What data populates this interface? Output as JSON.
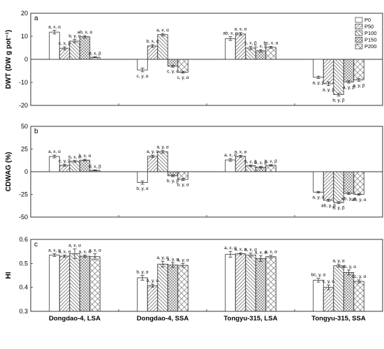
{
  "figure": {
    "categories": [
      "Dongdao-4, LSA",
      "Dongdao-4, SSA",
      "Tongyu-315, LSA",
      "Tongyu-315, SSA"
    ],
    "legend": [
      {
        "name": "P0",
        "pattern": "none"
      },
      {
        "name": "P50",
        "pattern": "diag-right"
      },
      {
        "name": "P100",
        "pattern": "diag-left"
      },
      {
        "name": "P150",
        "pattern": "cross"
      },
      {
        "name": "P200",
        "pattern": "cross-wide"
      }
    ],
    "colors": {
      "bar_fill": "#ffffff",
      "stroke": "#333333",
      "hatch": "#777777"
    }
  },
  "chart_data": [
    {
      "type": "bar",
      "panel_label": "a",
      "ylabel": "DWT (DW g pot⁻¹)",
      "ylim": [
        -20,
        20
      ],
      "yticks": [
        -20,
        -10,
        0,
        10,
        20
      ],
      "categories": [
        "Dongdao-4, LSA",
        "Dongdao-4, SSA",
        "Tongyu-315, LSA",
        "Tongyu-315, SSA"
      ],
      "legend_position": "top-right",
      "series": [
        {
          "name": "P0",
          "values": [
            11.8,
            -4.6,
            9.0,
            -7.8
          ],
          "errors": [
            0.8,
            0.8,
            0.8,
            0.5
          ],
          "labels": [
            "a, x, α",
            "c, y, α",
            "ab, x, α",
            "a, y, β"
          ]
        },
        {
          "name": "P50",
          "values": [
            4.8,
            5.8,
            11.0,
            -10.6
          ],
          "errors": [
            0.6,
            0.6,
            0.6,
            0.8
          ],
          "labels": [
            "c, x, β",
            "b, x, α",
            "a, x, α",
            "a, y, β"
          ]
        },
        {
          "name": "P100",
          "values": [
            7.9,
            10.7,
            4.9,
            -15.3
          ],
          "errors": [
            0.7,
            0.5,
            0.7,
            0.6
          ],
          "labels": [
            "b, y, α",
            "a, x, α",
            "c, x, β",
            "b, y, β"
          ]
        },
        {
          "name": "P150",
          "values": [
            9.8,
            -3.0,
            3.7,
            -9.8
          ],
          "errors": [
            0.5,
            0.4,
            0.5,
            0.5
          ],
          "labels": [
            "ab, x, α",
            "c, y, α",
            "c, x, β",
            "a, y, β"
          ]
        },
        {
          "name": "P200",
          "values": [
            0.9,
            -5.6,
            5.2,
            -8.9
          ],
          "errors": [
            0.2,
            0.4,
            0.4,
            0.6
          ],
          "labels": [
            "d, x, β",
            "c, y, α",
            "bc, x, α",
            "a, y, β"
          ]
        }
      ]
    },
    {
      "type": "bar",
      "panel_label": "b",
      "ylabel": "CDWAG (%)",
      "ylim": [
        -50,
        50
      ],
      "yticks": [
        -50,
        -25,
        0,
        25,
        50
      ],
      "categories": [
        "Dongdao-4, LSA",
        "Dongdao-4, SSA",
        "Tongyu-315, LSA",
        "Tongyu-315, SSA"
      ],
      "series": [
        {
          "name": "P0",
          "values": [
            16.8,
            -12.0,
            13.0,
            -22.5
          ],
          "errors": [
            1.5,
            1.8,
            1.5,
            0.8
          ],
          "labels": [
            "a, x, α",
            "b, y, α",
            "a, x, α",
            "a, y, α"
          ]
        },
        {
          "name": "P50",
          "values": [
            7.0,
            17.0,
            17.0,
            -31.5
          ],
          "errors": [
            1.0,
            1.3,
            1.0,
            1.0
          ],
          "labels": [
            "c, y, β",
            "a, y, α",
            "a, x, α",
            "ab, y, β"
          ]
        },
        {
          "name": "P100",
          "values": [
            11.5,
            22.0,
            6.5,
            -34.0
          ],
          "errors": [
            1.0,
            1.5,
            1.0,
            1.0
          ],
          "labels": [
            "b, x, α",
            "a, y, α",
            "b, x, β",
            "b, y, β"
          ]
        },
        {
          "name": "P150",
          "values": [
            12.8,
            -4.5,
            5.0,
            -24.0
          ],
          "errors": [
            1.0,
            1.0,
            1.0,
            1.0
          ],
          "labels": [
            "b, x, α",
            "b, y, β",
            "b, x, β",
            "ab, y, α"
          ]
        },
        {
          "name": "P200",
          "values": [
            1.5,
            -8.5,
            7.0,
            -25.0
          ],
          "errors": [
            0.5,
            1.2,
            0.8,
            1.0
          ],
          "labels": [
            "d, x, β",
            "b, y, α",
            "b, x, β",
            "ab, y, α"
          ]
        }
      ]
    },
    {
      "type": "bar",
      "panel_label": "c",
      "ylabel": "HI",
      "ylim": [
        0.3,
        0.6
      ],
      "yticks": [
        0.3,
        0.4,
        0.5,
        0.6
      ],
      "categories": [
        "Dongdao-4, LSA",
        "Dongdao-4, SSA",
        "Tongyu-315, LSA",
        "Tongyu-315, SSA"
      ],
      "series": [
        {
          "name": "P0",
          "values": [
            0.535,
            0.44,
            0.538,
            0.43
          ],
          "errors": [
            0.006,
            0.01,
            0.012,
            0.008
          ],
          "labels": [
            "a, x, α",
            "b, y, α",
            "a, x, α",
            "bc, y, α"
          ]
        },
        {
          "name": "P50",
          "values": [
            0.53,
            0.407,
            0.54,
            0.4
          ],
          "errors": [
            0.005,
            0.006,
            0.004,
            0.01
          ],
          "labels": [
            "a, x, α",
            "b, y, α",
            "a, x, α",
            "c, y, α"
          ]
        },
        {
          "name": "P100",
          "values": [
            0.54,
            0.497,
            0.535,
            0.49
          ],
          "errors": [
            0.02,
            0.012,
            0.008,
            0.006
          ],
          "labels": [
            "a, x, α",
            "a, y, α",
            "a, x, α",
            "a, y, α"
          ]
        },
        {
          "name": "P150",
          "values": [
            0.53,
            0.493,
            0.52,
            0.462
          ],
          "errors": [
            0.005,
            0.01,
            0.012,
            0.01
          ],
          "labels": [
            "a, x, α",
            "a, y, α",
            "a, x, α",
            "ab, y, α"
          ]
        },
        {
          "name": "P200",
          "values": [
            0.528,
            0.492,
            0.528,
            0.425
          ],
          "errors": [
            0.012,
            0.008,
            0.006,
            0.006
          ],
          "labels": [
            "a, x, α",
            "a, y, α",
            "a, x, α",
            "bc, y, α"
          ]
        }
      ]
    }
  ]
}
